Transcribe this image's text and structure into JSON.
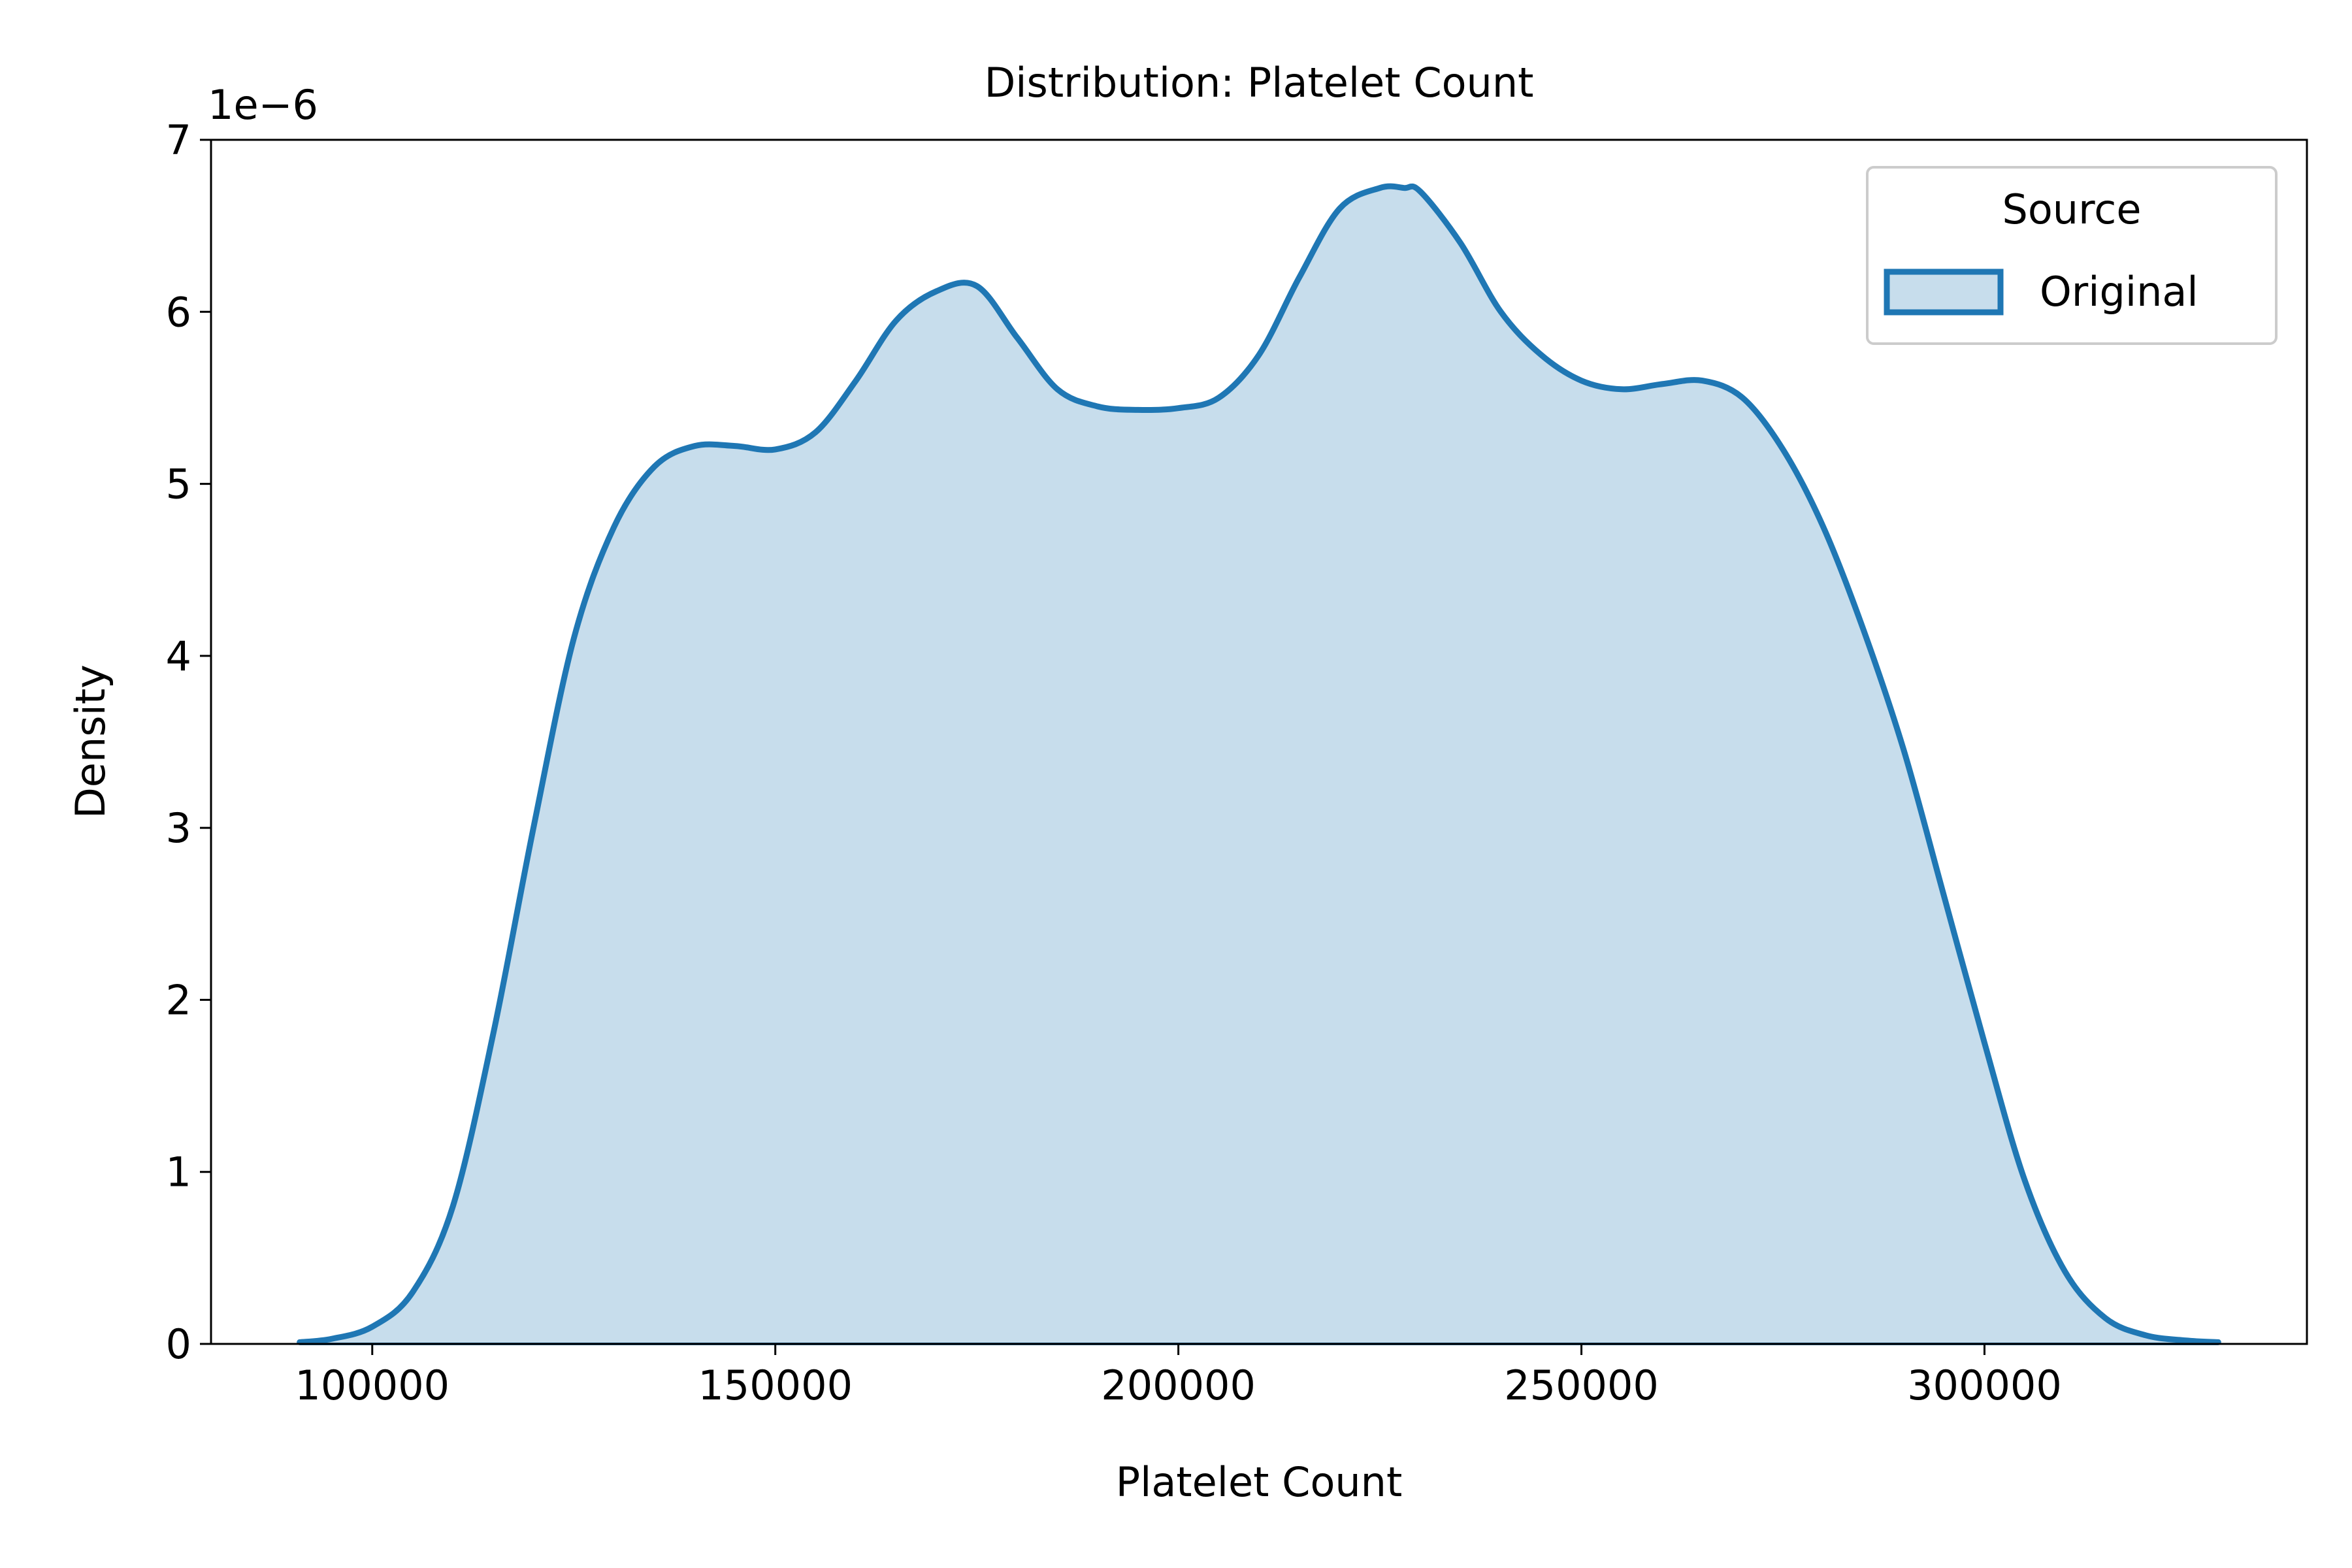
{
  "chart_data": {
    "type": "area",
    "title": "Distribution: Platelet Count",
    "xlabel": "Platelet Count",
    "ylabel": "Density",
    "y_offset_label": "1e−6",
    "y_scale_exponent": -6,
    "xlim": [
      80000,
      340000
    ],
    "ylim": [
      0,
      7
    ],
    "x_ticks": [
      100000,
      150000,
      200000,
      250000,
      300000
    ],
    "x_tick_labels": [
      "100000",
      "150000",
      "200000",
      "250000",
      "300000"
    ],
    "y_ticks": [
      0,
      1,
      2,
      3,
      4,
      5,
      6,
      7
    ],
    "y_tick_labels": [
      "0",
      "1",
      "2",
      "3",
      "4",
      "5",
      "6",
      "7"
    ],
    "grid": false,
    "legend": {
      "title": "Source",
      "placement": "top-right",
      "entries": [
        "Original"
      ]
    },
    "colors": {
      "line": "#1f77b4",
      "fill": "#1f77b4",
      "fill_opacity": 0.25
    },
    "series": [
      {
        "name": "Original",
        "x": [
          91000,
          95000,
          100000,
          105000,
          110000,
          115000,
          120000,
          125000,
          130000,
          135000,
          140000,
          145000,
          150000,
          155000,
          160000,
          165000,
          170000,
          175000,
          180000,
          185000,
          190000,
          195000,
          200000,
          205000,
          210000,
          215000,
          220000,
          225000,
          228000,
          230000,
          235000,
          240000,
          245000,
          250000,
          255000,
          260000,
          265000,
          270000,
          275000,
          280000,
          285000,
          290000,
          295000,
          300000,
          305000,
          310000,
          315000,
          320000,
          325000,
          329000
        ],
        "y": [
          0.01,
          0.03,
          0.1,
          0.3,
          0.8,
          1.8,
          3.0,
          4.1,
          4.75,
          5.1,
          5.22,
          5.22,
          5.2,
          5.3,
          5.6,
          5.95,
          6.12,
          6.15,
          5.85,
          5.55,
          5.45,
          5.43,
          5.44,
          5.5,
          5.75,
          6.2,
          6.6,
          6.72,
          6.72,
          6.7,
          6.4,
          6.0,
          5.75,
          5.6,
          5.55,
          5.58,
          5.6,
          5.5,
          5.2,
          4.75,
          4.15,
          3.45,
          2.6,
          1.75,
          0.95,
          0.42,
          0.15,
          0.05,
          0.02,
          0.01
        ]
      }
    ]
  }
}
